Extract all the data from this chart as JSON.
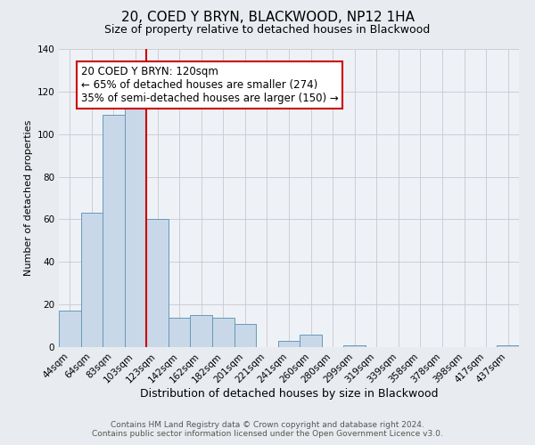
{
  "title": "20, COED Y BRYN, BLACKWOOD, NP12 1HA",
  "subtitle": "Size of property relative to detached houses in Blackwood",
  "xlabel": "Distribution of detached houses by size in Blackwood",
  "ylabel": "Number of detached properties",
  "footer_line1": "Contains HM Land Registry data © Crown copyright and database right 2024.",
  "footer_line2": "Contains public sector information licensed under the Open Government Licence v3.0.",
  "bar_labels": [
    "44sqm",
    "64sqm",
    "83sqm",
    "103sqm",
    "123sqm",
    "142sqm",
    "162sqm",
    "182sqm",
    "201sqm",
    "221sqm",
    "241sqm",
    "260sqm",
    "280sqm",
    "299sqm",
    "319sqm",
    "339sqm",
    "358sqm",
    "378sqm",
    "398sqm",
    "417sqm",
    "437sqm"
  ],
  "bar_values": [
    17,
    63,
    109,
    117,
    60,
    14,
    15,
    14,
    11,
    0,
    3,
    6,
    0,
    1,
    0,
    0,
    0,
    0,
    0,
    0,
    1
  ],
  "bar_color": "#c8d8e8",
  "bar_edge_color": "#6699bb",
  "vline_x_index": 4,
  "vline_color": "#cc0000",
  "annotation_box_text": "20 COED Y BRYN: 120sqm\n← 65% of detached houses are smaller (274)\n35% of semi-detached houses are larger (150) →",
  "annotation_box_edge_color": "#cc0000",
  "annotation_box_facecolor": "#ffffff",
  "annotation_fontsize": 8.5,
  "ylim": [
    0,
    140
  ],
  "yticks": [
    0,
    20,
    40,
    60,
    80,
    100,
    120,
    140
  ],
  "grid_color": "#c8c8d0",
  "bg_color": "#e8ecf0",
  "plot_bg_color": "#eef2f6",
  "title_fontsize": 11,
  "subtitle_fontsize": 9,
  "xlabel_fontsize": 9,
  "ylabel_fontsize": 8,
  "tick_fontsize": 7.5,
  "footer_fontsize": 6.5
}
